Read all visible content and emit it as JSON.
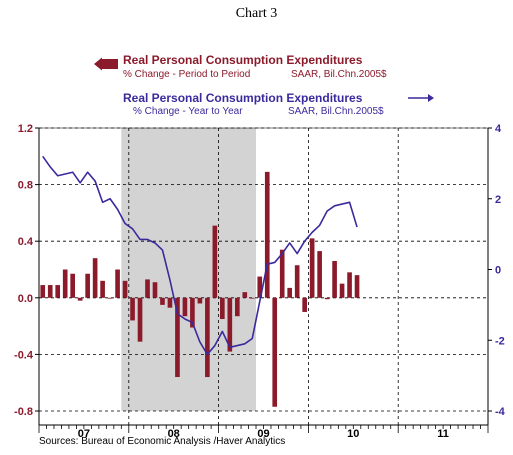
{
  "title": "Chart 3",
  "legend": {
    "bar": {
      "name": "Real Personal Consumption Expenditures",
      "sub_left": "% Change - Period to Period",
      "sub_right": "SAAR, Bil.Chn.2005$"
    },
    "line": {
      "name": "Real Personal Consumption Expenditures",
      "sub_left": "% Change - Year to Year",
      "sub_right": "SAAR, Bil.Chn.2005$"
    }
  },
  "source": "Sources:  Bureau of Economic Analysis /Haver Analytics",
  "colors": {
    "bar": "#8B1A2B",
    "line": "#3A2A9C",
    "recession": "#D3D3D3"
  },
  "chart_data": {
    "type": "bar+line",
    "left_axis": {
      "ticks": [
        "1.2",
        "0.8",
        "0.4",
        "0.0",
        "-0.4",
        "-0.8"
      ],
      "ylim": [
        -0.8,
        1.2
      ]
    },
    "right_axis": {
      "ticks": [
        "4",
        "2",
        "0",
        "-2",
        "-4"
      ],
      "ylim": [
        -4,
        4
      ]
    },
    "x_tick_labels": [
      "07",
      "08",
      "09",
      "10",
      "11"
    ],
    "x_range_months": [
      0,
      60
    ],
    "recession_shade_months": [
      11,
      29
    ],
    "bar_series": {
      "name": "Real Personal Consumption Expenditures",
      "axis": "left",
      "values": [
        0.09,
        0.09,
        0.09,
        0.2,
        0.17,
        -0.02,
        0.17,
        0.28,
        0.12,
        0.0,
        0.2,
        0.12,
        -0.16,
        -0.31,
        0.13,
        0.11,
        -0.05,
        -0.07,
        -0.56,
        -0.13,
        -0.21,
        -0.04,
        -0.56,
        0.51,
        -0.15,
        -0.38,
        -0.13,
        0.04,
        0.0,
        0.15,
        0.89,
        -0.77,
        0.34,
        0.07,
        0.23,
        -0.1,
        0.42,
        0.33,
        -0.01,
        0.26,
        0.1,
        0.18,
        0.16
      ]
    },
    "line_series": {
      "name": "Real Personal Consumption Expenditures",
      "axis": "right",
      "values": [
        3.2,
        2.9,
        2.65,
        2.7,
        2.75,
        2.45,
        2.75,
        2.5,
        1.9,
        2.0,
        1.7,
        1.3,
        1.15,
        0.85,
        0.85,
        0.75,
        0.55,
        -0.3,
        -1.25,
        -1.4,
        -1.5,
        -2.05,
        -2.4,
        -2.15,
        -1.75,
        -2.2,
        -2.15,
        -2.1,
        -1.95,
        -0.9,
        0.15,
        0.2,
        0.45,
        0.75,
        0.45,
        0.8,
        1.05,
        1.25,
        1.65,
        1.8,
        1.85,
        1.9,
        1.2
      ]
    }
  }
}
